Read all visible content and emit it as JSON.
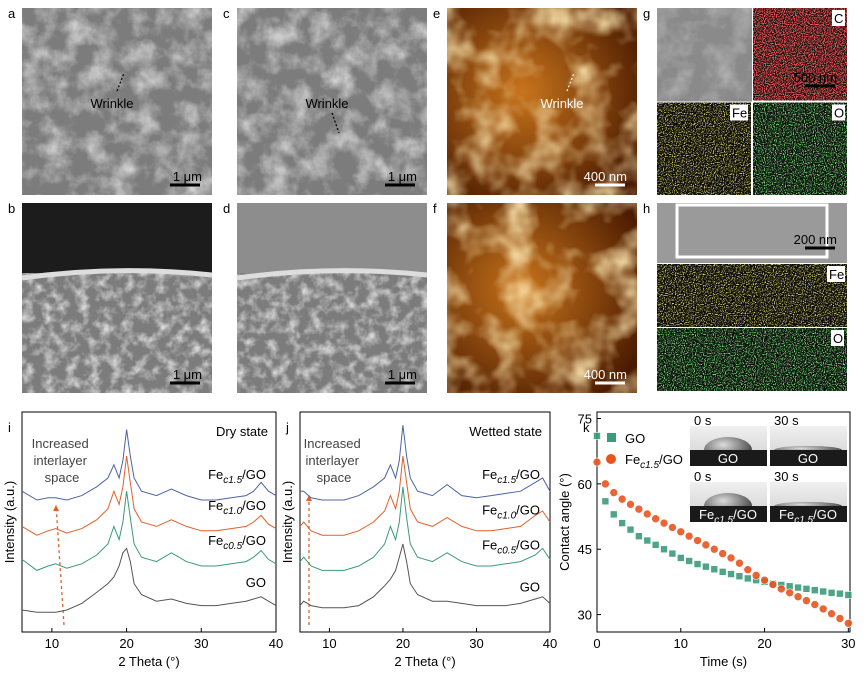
{
  "panels": [
    {
      "letter": "a",
      "annotation": "Wrinkle",
      "scale_bar": "1 μm"
    },
    {
      "letter": "b",
      "scale_bar": "1 μm"
    },
    {
      "letter": "c",
      "annotation": "Wrinkle",
      "scale_bar": "1 μm"
    },
    {
      "letter": "d",
      "scale_bar": "1 μm"
    },
    {
      "letter": "e",
      "annotation": "Wrinkle",
      "scale_bar": "400 nm"
    },
    {
      "letter": "f",
      "scale_bar": "400 nm"
    },
    {
      "letter": "g",
      "scale_bar": "500 nm",
      "maps": [
        "C",
        "Fe",
        "O"
      ]
    },
    {
      "letter": "h",
      "scale_bar": "200 nm",
      "maps": [
        "Fe",
        "O"
      ]
    }
  ],
  "chart_data": [
    {
      "type": "line",
      "panel": "i",
      "state": "Dry state",
      "annotation": "Increased interlayer space",
      "x_label": "2 Theta (°)",
      "y_label": "Intensity (a.u.)",
      "xlim": [
        6,
        40
      ],
      "xticks": [
        10,
        20,
        30,
        40
      ],
      "ylim": [
        0,
        100
      ],
      "x": [
        6,
        8,
        9.5,
        10.5,
        12,
        14,
        16,
        17.5,
        18.3,
        19,
        19.5,
        20,
        20.5,
        21,
        22,
        24,
        26,
        28,
        30,
        32,
        34,
        36,
        37,
        38,
        39,
        40
      ],
      "series": [
        {
          "name": "Fec1.5/GO",
          "color": "#4a64a8",
          "values": [
            64,
            60,
            61,
            61,
            60,
            62,
            66,
            70,
            76,
            70,
            78,
            92,
            80,
            70,
            64,
            62,
            65,
            62,
            60,
            60,
            61,
            62,
            64,
            68,
            64,
            62
          ]
        },
        {
          "name": "Fec1.0/GO",
          "color": "#e0602a",
          "values": [
            48,
            44,
            46,
            47,
            45,
            47,
            51,
            56,
            64,
            58,
            66,
            80,
            68,
            56,
            50,
            48,
            51,
            48,
            46,
            46,
            47,
            48,
            50,
            53,
            49,
            47
          ]
        },
        {
          "name": "Fec0.5/GO",
          "color": "#3a9a7a",
          "values": [
            33,
            28,
            30,
            31,
            29,
            31,
            35,
            40,
            48,
            42,
            50,
            64,
            52,
            40,
            34,
            32,
            36,
            32,
            30,
            30,
            31,
            32,
            34,
            37,
            33,
            31
          ]
        },
        {
          "name": "GO",
          "color": "#555555",
          "values": [
            10,
            9,
            9,
            9,
            10,
            13,
            18,
            22,
            25,
            30,
            36,
            38,
            32,
            22,
            17,
            14,
            15,
            13,
            12,
            12,
            13,
            14,
            15,
            16,
            14,
            12
          ]
        }
      ]
    },
    {
      "type": "line",
      "panel": "j",
      "state": "Wetted state",
      "annotation": "Increased interlayer space",
      "x_label": "2 Theta (°)",
      "y_label": "Intensity (a.u.)",
      "xlim": [
        6,
        40
      ],
      "xticks": [
        10,
        20,
        30,
        40
      ],
      "ylim": [
        0,
        100
      ],
      "x": [
        6,
        6.5,
        7.5,
        9,
        10.5,
        12,
        14,
        16,
        17.5,
        18.3,
        19,
        19.5,
        20,
        20.5,
        21,
        22,
        24,
        26,
        28,
        30,
        32,
        34,
        36,
        38,
        39,
        40
      ],
      "series": [
        {
          "name": "Fec1.5/GO",
          "color": "#4a64a8",
          "values": [
            64,
            64,
            61,
            60,
            60,
            60,
            62,
            66,
            70,
            76,
            70,
            78,
            94,
            80,
            70,
            64,
            62,
            67,
            62,
            61,
            62,
            63,
            64,
            68,
            70,
            64
          ]
        },
        {
          "name": "Fec1.0/GO",
          "color": "#e0602a",
          "values": [
            48,
            50,
            46,
            44,
            44,
            44,
            46,
            50,
            55,
            62,
            56,
            64,
            80,
            68,
            56,
            50,
            48,
            52,
            48,
            46,
            46,
            47,
            48,
            53,
            55,
            50
          ]
        },
        {
          "name": "Fec0.5/GO",
          "color": "#3a9a7a",
          "values": [
            32,
            34,
            30,
            28,
            28,
            28,
            30,
            34,
            40,
            48,
            42,
            50,
            66,
            52,
            40,
            34,
            32,
            36,
            32,
            30,
            30,
            31,
            32,
            35,
            38,
            33
          ]
        },
        {
          "name": "GO",
          "color": "#555555",
          "values": [
            12,
            14,
            12,
            11,
            11,
            11,
            12,
            16,
            21,
            24,
            28,
            34,
            40,
            32,
            22,
            17,
            14,
            14,
            13,
            12,
            12,
            12,
            13,
            15,
            16,
            13
          ]
        }
      ]
    },
    {
      "type": "scatter",
      "panel": "k",
      "x_label": "Time (s)",
      "y_label": "Contact angle (°)",
      "xlim": [
        0,
        30.2
      ],
      "xticks": [
        0,
        10,
        20,
        30
      ],
      "ylim": [
        26,
        76.5
      ],
      "yticks": [
        30,
        45,
        60,
        75
      ],
      "x": [
        0,
        1,
        2,
        3,
        4,
        5,
        6,
        7,
        8,
        9,
        10,
        11,
        12,
        13,
        14,
        15,
        16,
        17,
        18,
        19,
        20,
        21,
        22,
        23,
        24,
        25,
        26,
        27,
        28,
        29,
        30
      ],
      "series": [
        {
          "name": "GO",
          "color": "#3a9a7a",
          "marker": "square",
          "values": [
            71,
            56,
            53,
            51,
            49.5,
            48,
            47,
            46,
            45,
            44,
            43,
            42.3,
            41.6,
            41,
            40.4,
            39.8,
            39.3,
            38.8,
            38.3,
            37.9,
            37.5,
            37.1,
            36.8,
            36.5,
            36.2,
            35.9,
            35.6,
            35.3,
            35,
            34.8,
            34.5
          ]
        },
        {
          "name": "Fec1.5/GO",
          "color": "#e8531e",
          "marker": "circle",
          "values": [
            65,
            60,
            58,
            56.5,
            55.3,
            54.2,
            53.1,
            52,
            51,
            50,
            49,
            48,
            47,
            46,
            45,
            44,
            43,
            41.8,
            40.3,
            39,
            37.9,
            36.9,
            35.9,
            35,
            34.1,
            33.2,
            32.3,
            31.3,
            30.2,
            29.1,
            28
          ]
        }
      ],
      "inset": {
        "times": [
          "0 s",
          "30 s"
        ],
        "samples": [
          "GO",
          "Fec1.5/GO"
        ]
      }
    }
  ]
}
